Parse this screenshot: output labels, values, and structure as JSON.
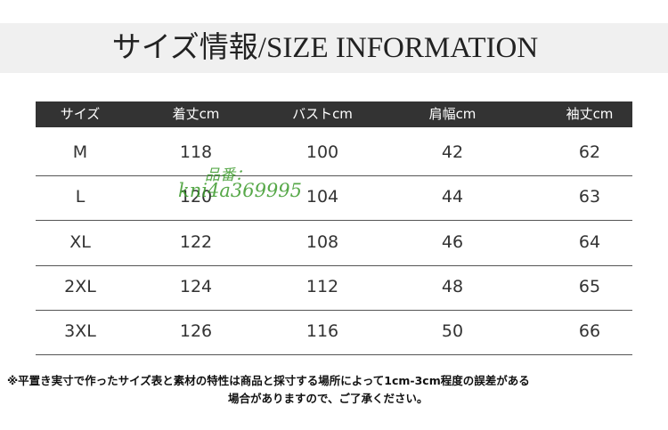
{
  "header": {
    "title": "サイズ情報/SIZE INFORMATION"
  },
  "table": {
    "columns": [
      "サイズ",
      "着丈cm",
      "バストcm",
      "肩幅cm",
      "袖丈cm"
    ],
    "rows": [
      [
        "M",
        118,
        100,
        42,
        62
      ],
      [
        "L",
        120,
        104,
        44,
        63
      ],
      [
        "XL",
        122,
        108,
        46,
        64
      ],
      [
        "2XL",
        124,
        112,
        48,
        65
      ],
      [
        "3XL",
        126,
        116,
        50,
        66
      ]
    ]
  },
  "watermark": {
    "label": "品番：",
    "code": "kni4a369995"
  },
  "note": {
    "lines": [
      "※平置き実寸で作ったサイズ表と素材の特性は商品と採寸する場所によって1cm-3cm程度の誤差がある",
      "場合がありますので、ご了承ください。"
    ]
  }
}
